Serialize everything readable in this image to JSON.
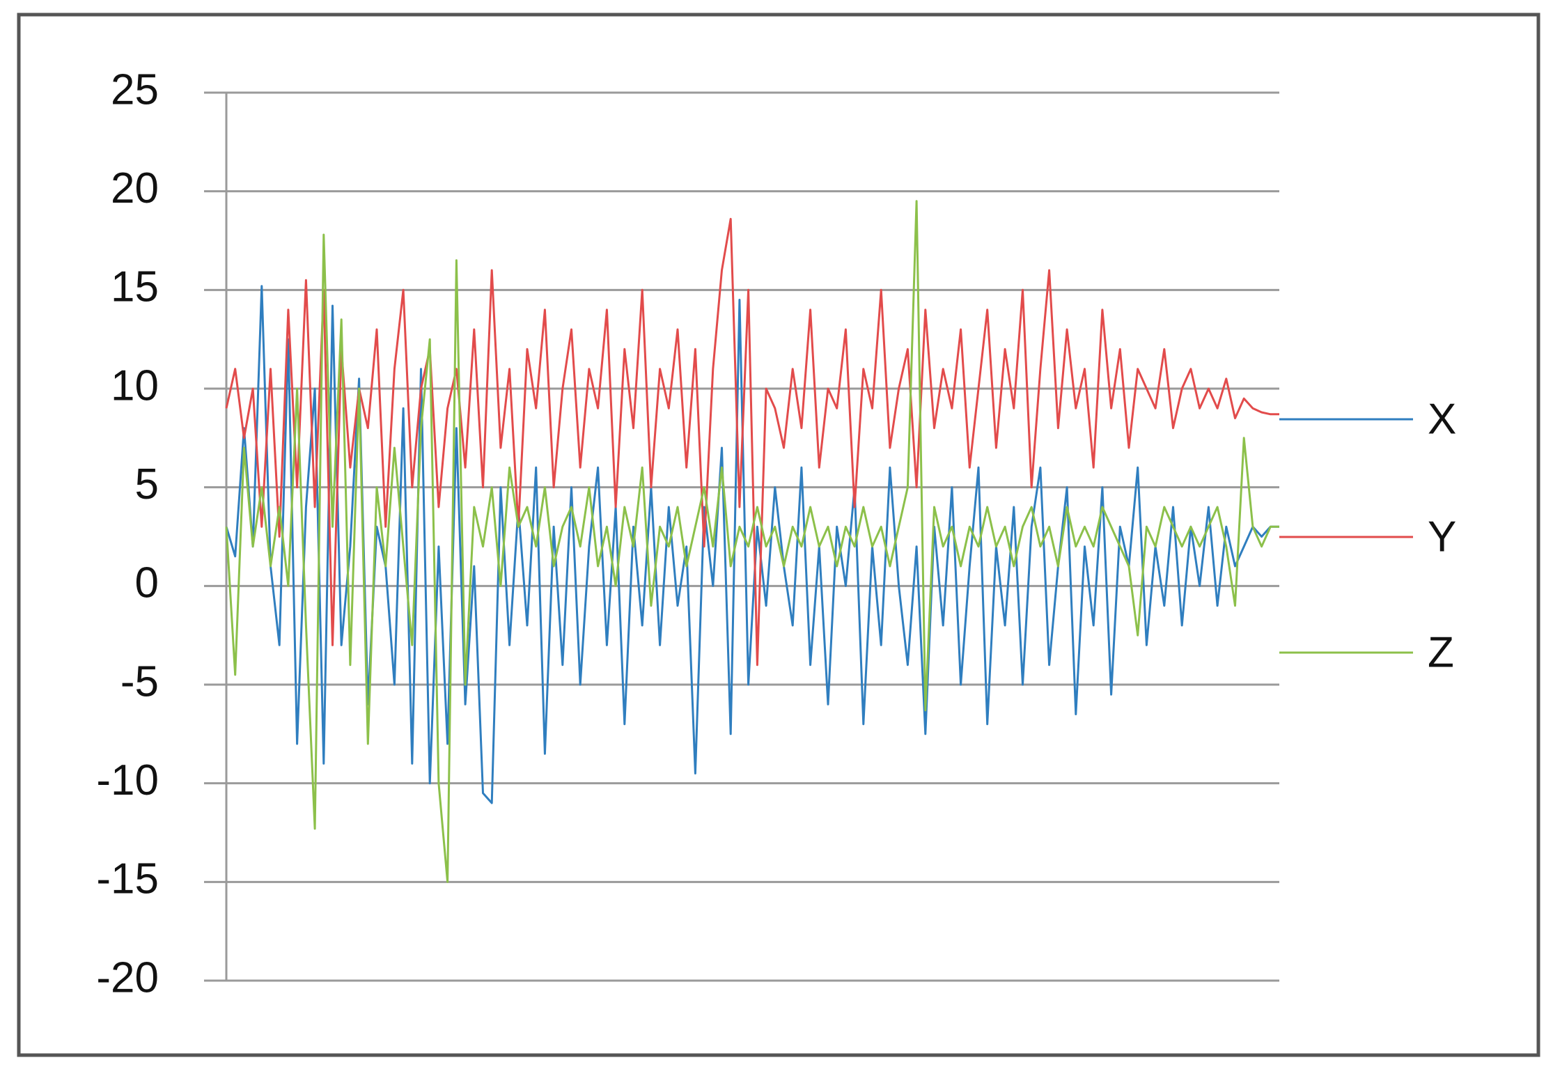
{
  "chart_data": {
    "type": "line",
    "ylim": [
      -20,
      25
    ],
    "yticks": [
      -20,
      -15,
      -10,
      -5,
      0,
      5,
      10,
      15,
      20,
      25
    ],
    "grid": true,
    "legend": "right",
    "series": [
      {
        "name": "X",
        "color": "#2f7ebf",
        "values": [
          3,
          1.5,
          8,
          2,
          15.2,
          1,
          -3,
          12.5,
          -8,
          4,
          10,
          -9,
          14.2,
          -3,
          2,
          10.5,
          -6,
          3,
          1,
          -5,
          9,
          -9,
          11,
          -10,
          2,
          -8,
          8,
          -6,
          1,
          -10.5,
          -11,
          5,
          -3,
          4,
          -2,
          6,
          -8.5,
          3,
          -4,
          5,
          -5,
          2,
          6,
          -3,
          4,
          -7,
          3,
          -2,
          5,
          -3,
          4,
          -1,
          2,
          -9.5,
          4,
          0,
          7,
          -7.5,
          14.5,
          -5,
          3,
          -1,
          5,
          1,
          -2,
          6,
          -4,
          2,
          -6,
          3,
          0,
          5,
          -7,
          2,
          -3,
          6,
          0,
          -4,
          2,
          -7.5,
          3,
          -2,
          5,
          -5,
          1,
          6,
          -7,
          2,
          -2,
          4,
          -5,
          3,
          6,
          -4,
          1,
          5,
          -6.5,
          2,
          -2,
          5,
          -5.5,
          3,
          1,
          6,
          -3,
          2,
          -1,
          4,
          -2,
          3,
          0,
          4,
          -1,
          3,
          1,
          2,
          3,
          2.5,
          3,
          3
        ]
      },
      {
        "name": "Y",
        "color": "#e24b4b",
        "values": [
          9,
          11,
          7.5,
          10,
          3,
          11,
          2.5,
          14,
          5,
          15.5,
          4,
          15,
          -3,
          12,
          6,
          10,
          8,
          13,
          3,
          11,
          15,
          5,
          10,
          12,
          4,
          9,
          11,
          6,
          13,
          5,
          16,
          7,
          11,
          3,
          12,
          9,
          14,
          5,
          10,
          13,
          6,
          11,
          9,
          14,
          4,
          12,
          8,
          15,
          5,
          11,
          9,
          13,
          6,
          12,
          2,
          11,
          16,
          18.6,
          4,
          15,
          -4,
          10,
          9,
          7,
          11,
          8,
          14,
          6,
          10,
          9,
          13,
          4,
          11,
          9,
          15,
          7,
          10,
          12,
          5,
          14,
          8,
          11,
          9,
          13,
          6,
          10,
          14,
          7,
          12,
          9,
          15,
          5,
          11,
          16,
          8,
          13,
          9,
          11,
          6,
          14,
          9,
          12,
          7,
          11,
          10,
          9,
          12,
          8,
          10,
          11,
          9,
          10,
          9,
          10.5,
          8.5,
          9.5,
          9,
          8.8,
          8.7,
          8.7
        ]
      },
      {
        "name": "Z",
        "color": "#8cc04a",
        "values": [
          3,
          -4.5,
          7,
          2,
          5,
          1,
          4,
          0,
          10,
          -2,
          -12.3,
          17.8,
          3,
          13.5,
          -4,
          10,
          -8,
          5,
          1,
          7,
          2,
          -3,
          8,
          12.5,
          -10,
          -15,
          16.5,
          -5,
          4,
          2,
          5,
          0,
          6,
          3,
          4,
          2,
          5,
          1,
          3,
          4,
          2,
          5,
          1,
          3,
          0,
          4,
          2,
          6,
          -1,
          3,
          2,
          4,
          1,
          3,
          5,
          2,
          6,
          1,
          3,
          2,
          4,
          2,
          3,
          1,
          3,
          2,
          4,
          2,
          3,
          1,
          3,
          2,
          4,
          2,
          3,
          1,
          3,
          5,
          19.5,
          -6.3,
          4,
          2,
          3,
          1,
          3,
          2,
          4,
          2,
          3,
          1,
          3,
          4,
          2,
          3,
          1,
          4,
          2,
          3,
          2,
          4,
          3,
          2,
          1,
          -2.5,
          3,
          2,
          4,
          3,
          2,
          3,
          2,
          3,
          4,
          2,
          -1,
          7.5,
          3,
          2,
          3,
          3
        ]
      }
    ]
  }
}
